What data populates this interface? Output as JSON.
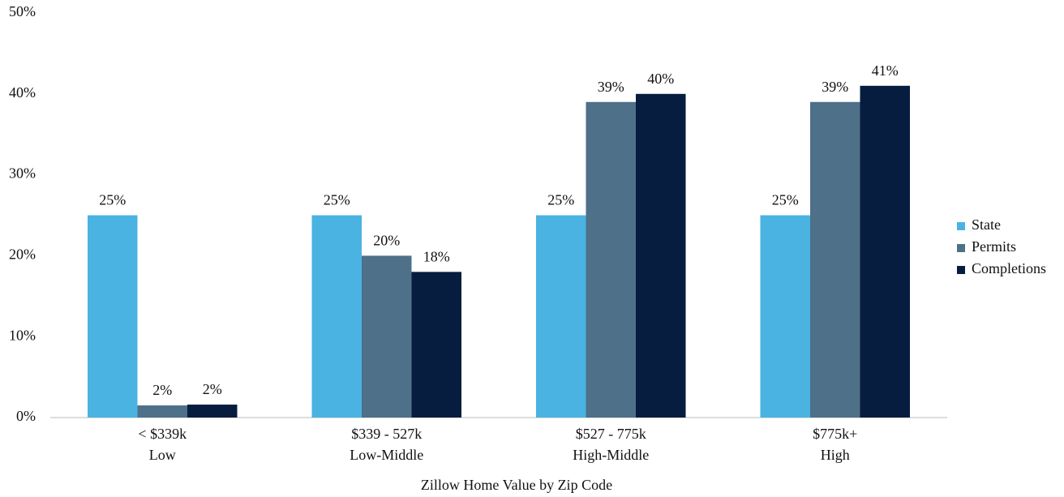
{
  "chart_data": {
    "type": "bar",
    "x_label": "Zillow Home Value by Zip Code",
    "categories": [
      [
        "< $339k",
        "Low"
      ],
      [
        "$339 - 527k",
        "Low-Middle"
      ],
      [
        "$527 - 775k",
        "High-Middle"
      ],
      [
        "$775k+",
        "High"
      ]
    ],
    "series": [
      {
        "name": "State",
        "color": "#4ab3e2",
        "values": [
          25,
          25,
          25,
          25
        ],
        "value_labels": [
          "25%",
          "25%",
          "25%",
          "25%"
        ]
      },
      {
        "name": "Permits",
        "color": "#4e7089",
        "values": [
          1.5,
          20,
          39,
          39
        ],
        "value_labels": [
          "2%",
          "20%",
          "39%",
          "39%"
        ]
      },
      {
        "name": "Completions",
        "color": "#061d40",
        "values": [
          1.6,
          18,
          40,
          41
        ],
        "value_labels": [
          "2%",
          "18%",
          "40%",
          "41%"
        ]
      }
    ],
    "ylim": [
      0,
      50
    ],
    "yticks": [
      {
        "value": 0,
        "label": "0%"
      },
      {
        "value": 10,
        "label": "10%"
      },
      {
        "value": 20,
        "label": "20%"
      },
      {
        "value": 30,
        "label": "30%"
      },
      {
        "value": 40,
        "label": "40%"
      },
      {
        "value": 50,
        "label": "50%"
      }
    ],
    "grid": false,
    "legend": "right"
  }
}
